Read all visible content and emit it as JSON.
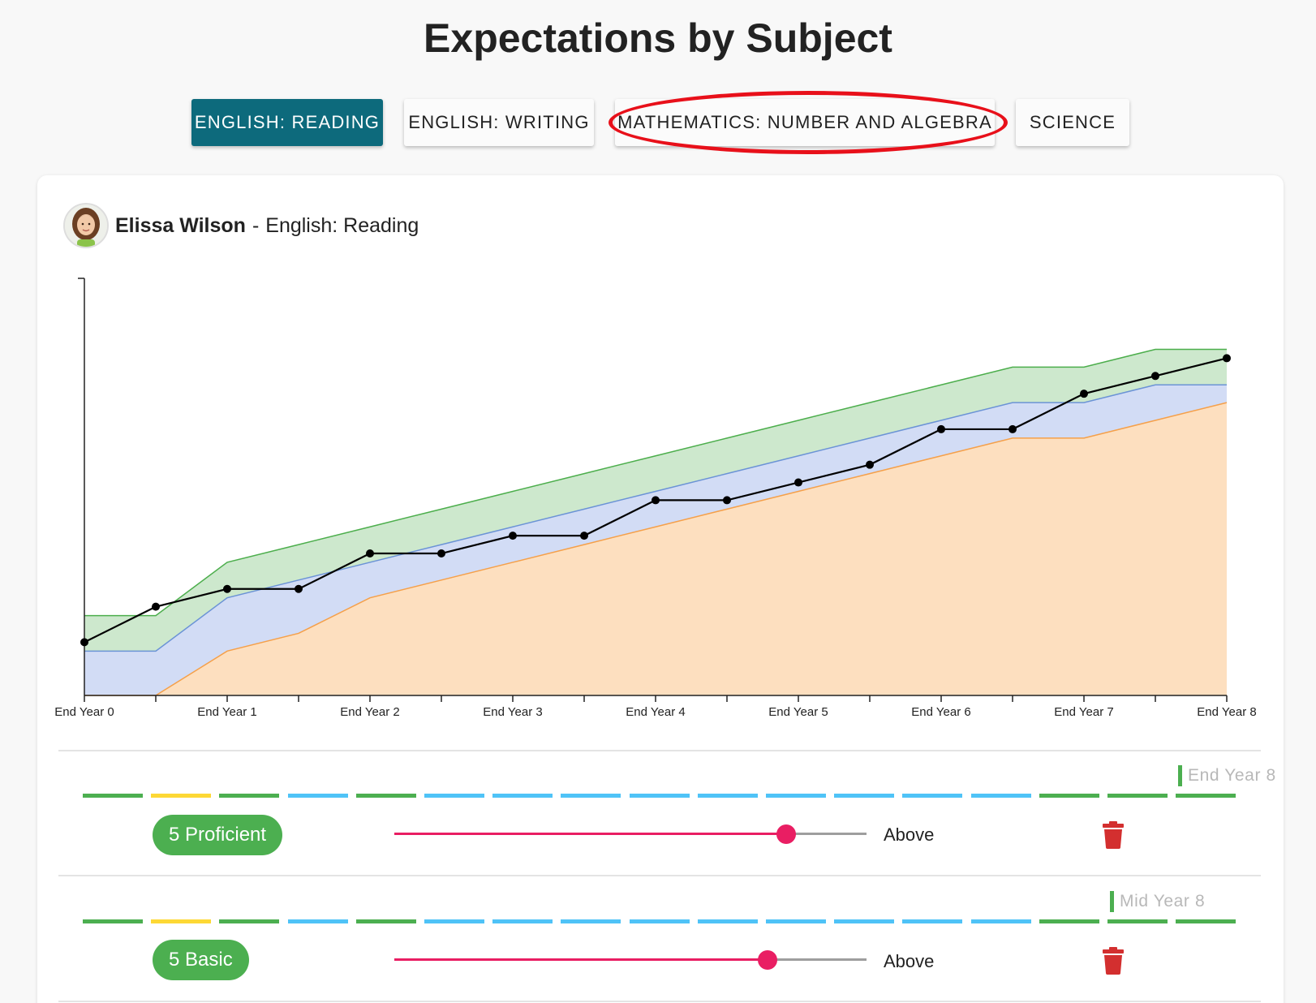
{
  "page": {
    "title": "Expectations by Subject"
  },
  "tabs": [
    {
      "label": "ENGLISH: READING",
      "active": true
    },
    {
      "label": "ENGLISH: WRITING",
      "active": false
    },
    {
      "label": "MATHEMATICS: NUMBER AND ALGEBRA",
      "active": false,
      "highlighted": true
    },
    {
      "label": "SCIENCE",
      "active": false
    }
  ],
  "card": {
    "student_name": "Elissa Wilson",
    "separator": "-",
    "subject": "English: Reading"
  },
  "chart_data": {
    "type": "area",
    "x_labels": [
      "End Year 0",
      "End Year 1",
      "End Year 2",
      "End Year 3",
      "End Year 4",
      "End Year 5",
      "End Year 6",
      "End Year 7",
      "End Year 8"
    ],
    "x": [
      0,
      0.5,
      1,
      1.5,
      2,
      2.5,
      3,
      3.5,
      4,
      4.5,
      5,
      5.5,
      6,
      6.5,
      7,
      7.5,
      8
    ],
    "xlim": [
      0,
      8
    ],
    "ylim": [
      0,
      23.5
    ],
    "series": [
      {
        "role": "lower band",
        "color": "#f5a04a",
        "fill": "#fddfbf",
        "values": [
          0,
          0,
          2.5,
          3.5,
          5.5,
          6.5,
          7.5,
          8.5,
          9.5,
          10.5,
          11.5,
          12.5,
          13.5,
          14.5,
          14.5,
          15.5,
          16.5
        ]
      },
      {
        "role": "middle band",
        "color": "#6b93d6",
        "fill": "#d2dcf5",
        "values": [
          2.5,
          2.5,
          5.5,
          6.5,
          7.5,
          8.5,
          9.5,
          10.5,
          11.5,
          12.5,
          13.5,
          14.5,
          15.5,
          16.5,
          16.5,
          17.5,
          17.5
        ]
      },
      {
        "role": "upper band",
        "color": "#4cae4c",
        "fill": "#cde8cd",
        "values": [
          4.5,
          4.5,
          7.5,
          8.5,
          9.5,
          10.5,
          11.5,
          12.5,
          13.5,
          14.5,
          15.5,
          16.5,
          17.5,
          18.5,
          18.5,
          19.5,
          19.5
        ]
      },
      {
        "role": "student",
        "color": "#000000",
        "values": [
          3,
          5,
          6,
          6,
          8,
          8,
          9,
          9,
          11,
          11,
          12,
          13,
          15,
          15,
          17,
          18,
          19
        ]
      }
    ]
  },
  "timeline_colors": {
    "green": "#4caf50",
    "yellow": "#fdd835",
    "blue": "#4fc3f7"
  },
  "rows": [
    {
      "marker": "End Year 8",
      "marker_index": 16,
      "segments": [
        "green",
        "yellow",
        "green",
        "blue",
        "green",
        "blue",
        "blue",
        "blue",
        "blue",
        "blue",
        "blue",
        "blue",
        "blue",
        "blue",
        "green",
        "green",
        "green"
      ],
      "level": "5 Proficient",
      "slider_value": 0.83,
      "slider_label": "Above"
    },
    {
      "marker": "Mid Year 8",
      "marker_index": 15,
      "segments": [
        "green",
        "yellow",
        "green",
        "blue",
        "green",
        "blue",
        "blue",
        "blue",
        "blue",
        "blue",
        "blue",
        "blue",
        "blue",
        "blue",
        "green",
        "green",
        "green"
      ],
      "level": "5 Basic",
      "slider_value": 0.79,
      "slider_label": "Above"
    }
  ],
  "colors": {
    "active_tab": "#0d6a7c",
    "chip": "#4caf50",
    "slider": "#e91e63",
    "slider_track": "#9e9e9e",
    "delete": "#d32f2f",
    "annotation": "#e8101a"
  },
  "icons": {
    "delete": "trash-icon"
  }
}
